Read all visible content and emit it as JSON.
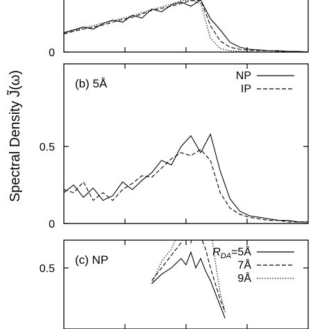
{
  "ylabel": "Spectral Density J̃(ω)",
  "chart_data": [
    {
      "type": "line",
      "panel_label": "",
      "ylim": [
        0,
        0.75
      ],
      "yticks": [
        {
          "value": 0,
          "label": "0"
        }
      ],
      "x": [
        0,
        4,
        8,
        12,
        16,
        20,
        24,
        28,
        32,
        36,
        40,
        44,
        48,
        52,
        56,
        60,
        64,
        68,
        72,
        76,
        80,
        84,
        88,
        92,
        96,
        100
      ],
      "series": [
        {
          "name": "",
          "dash": "solid",
          "values": [
            0.28,
            0.32,
            0.36,
            0.33,
            0.41,
            0.46,
            0.43,
            0.53,
            0.49,
            0.62,
            0.58,
            0.68,
            0.72,
            0.66,
            0.75,
            0.48,
            0.32,
            0.14,
            0.07,
            0.04,
            0.03,
            0.02,
            0.02,
            0.01,
            0.01,
            0.0
          ]
        },
        {
          "name": "",
          "dash": "dashed",
          "values": [
            0.26,
            0.3,
            0.33,
            0.36,
            0.39,
            0.43,
            0.47,
            0.5,
            0.55,
            0.6,
            0.63,
            0.66,
            0.7,
            0.74,
            0.75,
            0.38,
            0.16,
            0.07,
            0.04,
            0.03,
            0.02,
            0.02,
            0.01,
            0.01,
            0.01,
            0.0
          ]
        },
        {
          "name": "",
          "dash": "dotted",
          "values": [
            0.27,
            0.31,
            0.35,
            0.38,
            0.42,
            0.45,
            0.49,
            0.52,
            0.57,
            0.61,
            0.65,
            0.69,
            0.74,
            0.75,
            0.7,
            0.2,
            0.05,
            0.02,
            0.01,
            0.01,
            0.0,
            0.0,
            0.0,
            0.0,
            0.0,
            0.0
          ]
        }
      ]
    },
    {
      "type": "line",
      "panel_label": "(b) 5Å",
      "ylim": [
        0,
        0.75
      ],
      "yticks": [
        {
          "value": 0,
          "label": "0"
        },
        {
          "value": 0.5,
          "label": "0.5"
        }
      ],
      "x": [
        0,
        4,
        8,
        12,
        16,
        20,
        24,
        28,
        32,
        36,
        40,
        44,
        48,
        52,
        56,
        60,
        64,
        68,
        72,
        76,
        80,
        84,
        88,
        92,
        96,
        100
      ],
      "series": [
        {
          "name": "NP",
          "dash": "solid",
          "values": [
            0.2,
            0.25,
            0.17,
            0.23,
            0.15,
            0.18,
            0.27,
            0.22,
            0.28,
            0.33,
            0.41,
            0.38,
            0.5,
            0.57,
            0.46,
            0.58,
            0.34,
            0.16,
            0.08,
            0.05,
            0.04,
            0.03,
            0.02,
            0.02,
            0.01,
            0.01
          ]
        },
        {
          "name": "IP",
          "dash": "dashed",
          "values": [
            0.22,
            0.2,
            0.27,
            0.15,
            0.2,
            0.15,
            0.22,
            0.26,
            0.31,
            0.3,
            0.36,
            0.42,
            0.46,
            0.44,
            0.48,
            0.41,
            0.2,
            0.1,
            0.06,
            0.04,
            0.03,
            0.02,
            0.02,
            0.01,
            0.01,
            0.01
          ]
        }
      ],
      "legend": [
        "NP",
        "IP"
      ]
    },
    {
      "type": "line",
      "panel_label": "(c) NP",
      "ylim": [
        0,
        0.75
      ],
      "yticks": [
        {
          "value": 0.5,
          "label": "0.5"
        }
      ],
      "x": [
        36,
        40,
        44,
        48,
        50,
        52,
        54,
        56,
        58,
        60,
        62,
        64,
        66
      ],
      "series": [
        {
          "name": "RDA=5Å",
          "dash": "solid",
          "values": [
            0.45,
            0.48,
            0.5,
            0.53,
            0.51,
            0.55,
            0.5,
            0.53,
            0.49,
            0.46,
            0.42,
            0.38,
            0.34
          ]
        },
        {
          "name": "7Å",
          "dash": "dashed",
          "values": [
            0.46,
            0.5,
            0.54,
            0.58,
            0.61,
            0.58,
            0.66,
            0.6,
            0.56,
            0.5,
            0.45,
            0.4,
            0.36
          ]
        },
        {
          "name": "9Å",
          "dash": "dotted",
          "values": [
            0.45,
            0.52,
            0.56,
            0.63,
            0.82,
            0.62,
            0.76,
            0.6,
            0.96,
            0.63,
            0.52,
            0.42,
            0.36
          ]
        }
      ],
      "legend_prefix": "R",
      "legend_subscript": "DA",
      "legend": [
        "=5Å",
        "7Å",
        "9Å"
      ]
    }
  ]
}
